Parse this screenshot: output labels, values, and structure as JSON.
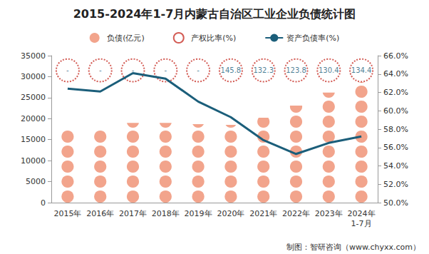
{
  "chart_data": {
    "type": "bar",
    "title": "2015-2024年1-7月内蒙古自治区工业企业负债统计图",
    "categories": [
      "2015年",
      "2016年",
      "2017年",
      "2018年",
      "2019年",
      "2020年",
      "2021年",
      "2022年",
      "2023年",
      "2024年\n1-7月"
    ],
    "series": [
      {
        "name": "负债(亿元)",
        "type": "bar",
        "marker": "circle",
        "color": "#f2a48c",
        "values": [
          17300,
          17700,
          19000,
          19000,
          18700,
          18500,
          20200,
          23100,
          26200,
          28700
        ]
      },
      {
        "name": "产权比率(%)",
        "type": "scatter",
        "marker": "circle",
        "line_style": "dotted",
        "color": "#c8332b",
        "data_labels": true,
        "values": [
          null,
          null,
          null,
          null,
          null,
          145.8,
          132.3,
          123.8,
          130.4,
          134.4
        ],
        "value_labels": [
          "-",
          "-",
          "-",
          "-",
          "-",
          "145.8",
          "132.3",
          "123.8",
          "130.4",
          "134.4"
        ]
      },
      {
        "name": "资产负债率(%)",
        "type": "line",
        "axis": "y2",
        "color": "#1b5e7a",
        "values": [
          62.4,
          62.1,
          64.1,
          63.5,
          61.0,
          59.3,
          56.8,
          55.3,
          56.5,
          57.2
        ]
      }
    ],
    "ylim": [
      0,
      35000
    ],
    "yticks": [
      0,
      5000,
      10000,
      15000,
      20000,
      25000,
      30000,
      35000
    ],
    "y2lim": [
      50,
      66
    ],
    "y2ticks": [
      {
        "value": 50,
        "label": "50.0%"
      },
      {
        "value": 52,
        "label": "52.0%"
      },
      {
        "value": 54,
        "label": "54.0%"
      },
      {
        "value": 56,
        "label": "56.0%"
      },
      {
        "value": 58,
        "label": "58.0%"
      },
      {
        "value": 60,
        "label": "60.0%"
      },
      {
        "value": 62,
        "label": "62.0%"
      },
      {
        "value": 64,
        "label": "64.0%"
      },
      {
        "value": 66,
        "label": "66.0%"
      }
    ],
    "grid": false,
    "legend": "top",
    "annotations": [
      "制图：智研咨询（www.chyxx.com）"
    ]
  }
}
